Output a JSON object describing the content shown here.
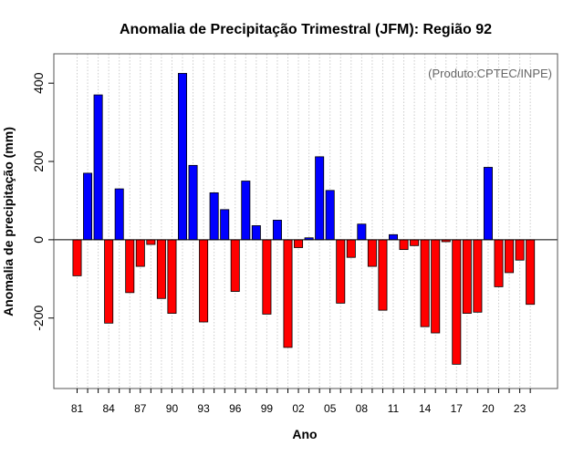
{
  "chart_data": {
    "type": "bar",
    "title": "Anomalia de Precipitação Trimestral (JFM): Região 92",
    "xlabel": "Ano",
    "ylabel": "Anomalia de precipitação (mm)",
    "credit": "(Produto:CPTEC/INPE)",
    "ylim": [
      -380,
      475
    ],
    "yticks": [
      -200,
      0,
      200,
      400
    ],
    "ytick_labels": [
      "-200",
      "0",
      "200",
      "400"
    ],
    "grid": "vertical dotted",
    "categories": [
      1981,
      1982,
      1983,
      1984,
      1985,
      1986,
      1987,
      1988,
      1989,
      1990,
      1991,
      1992,
      1993,
      1994,
      1995,
      1996,
      1997,
      1998,
      1999,
      2000,
      2001,
      2002,
      2003,
      2004,
      2005,
      2006,
      2007,
      2008,
      2009,
      2010,
      2011,
      2012,
      2013,
      2014,
      2015,
      2016,
      2017,
      2018,
      2019,
      2020,
      2021,
      2022,
      2023,
      2024
    ],
    "values": [
      -92,
      170,
      370,
      -213,
      130,
      -135,
      -68,
      -12,
      -150,
      -188,
      425,
      190,
      -210,
      120,
      77,
      -132,
      150,
      36,
      -190,
      50,
      -275,
      -20,
      5,
      212,
      126,
      -162,
      -45,
      40,
      -68,
      -180,
      13,
      -25,
      -15,
      -222,
      -238,
      -5,
      -318,
      -188,
      -185,
      185,
      -120,
      -84,
      -52,
      -165
    ],
    "xtick_labels": [
      "81",
      "84",
      "87",
      "90",
      "93",
      "96",
      "99",
      "02",
      "05",
      "08",
      "11",
      "14",
      "17",
      "20",
      "23"
    ],
    "xtick_years": [
      1981,
      1984,
      1987,
      1990,
      1993,
      1996,
      1999,
      2002,
      2005,
      2008,
      2011,
      2014,
      2017,
      2020,
      2023
    ],
    "colors": {
      "positive": "#0000ff",
      "negative": "#ff0000",
      "bar_stroke": "#000000",
      "zero_line": "#000000",
      "frame": "#555555",
      "grid": "#cccccc",
      "background": "#ffffff"
    }
  }
}
